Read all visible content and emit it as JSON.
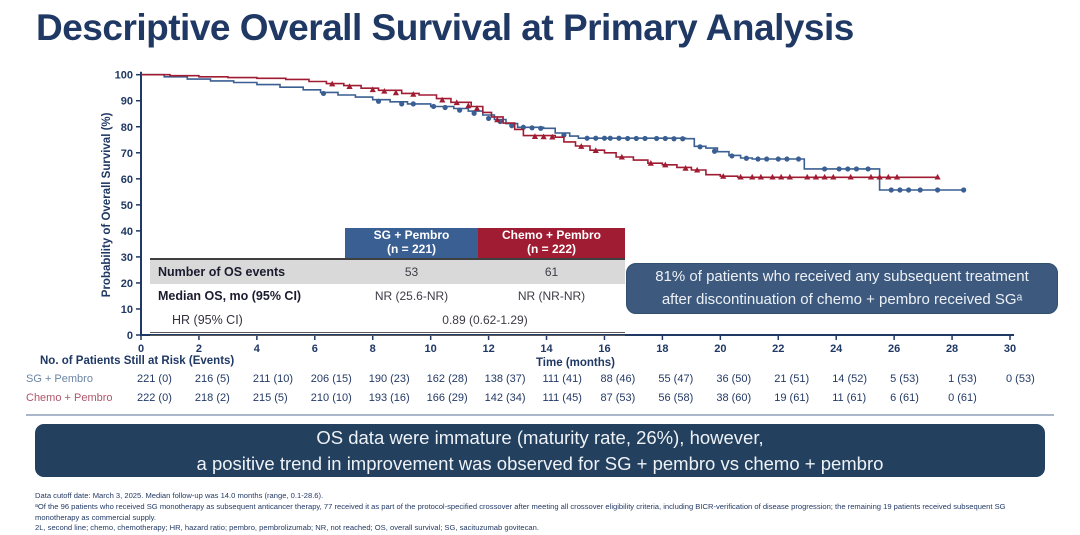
{
  "slide": {
    "title": "Descriptive Overall Survival at Primary Analysis"
  },
  "chart_data": {
    "type": "line",
    "subtype": "kaplan-meier-step",
    "title": "",
    "xlabel": "Time (months)",
    "ylabel": "Probability of Overall Survival (%)",
    "xlim": [
      0,
      30
    ],
    "ylim": [
      0,
      100
    ],
    "x_ticks": [
      0,
      2,
      4,
      6,
      8,
      10,
      12,
      14,
      16,
      18,
      20,
      22,
      24,
      26,
      28,
      30
    ],
    "y_ticks": [
      0,
      10,
      20,
      30,
      40,
      50,
      60,
      70,
      80,
      90,
      100
    ],
    "grid": false,
    "legend_position": "none",
    "series": [
      {
        "name": "SG + Pembro",
        "color": "#3a5f92",
        "marker": "circle",
        "points": [
          [
            0,
            100
          ],
          [
            0.8,
            99.2
          ],
          [
            1.6,
            98.3
          ],
          [
            2.4,
            97.6
          ],
          [
            3.2,
            97
          ],
          [
            4,
            96.2
          ],
          [
            4.8,
            95.2
          ],
          [
            5.6,
            94.2
          ],
          [
            6.2,
            93.2
          ],
          [
            6.8,
            92.2
          ],
          [
            7.4,
            91.4
          ],
          [
            8,
            90.4
          ],
          [
            8.6,
            89.6
          ],
          [
            9.2,
            88.8
          ],
          [
            10,
            87.8
          ],
          [
            10.8,
            87
          ],
          [
            11.3,
            86
          ],
          [
            11.8,
            84.5
          ],
          [
            12.2,
            82.8
          ],
          [
            12.6,
            81.2
          ],
          [
            13,
            79.8
          ],
          [
            13.9,
            79.4
          ],
          [
            14.3,
            77.6
          ],
          [
            14.8,
            76.4
          ],
          [
            15.1,
            75.6
          ],
          [
            18.8,
            75.4
          ],
          [
            19.1,
            72.5
          ],
          [
            19.5,
            71.8
          ],
          [
            19.9,
            70.4
          ],
          [
            20.3,
            69
          ],
          [
            20.7,
            68
          ],
          [
            21.1,
            67.6
          ],
          [
            22.8,
            67.6
          ],
          [
            22.9,
            63.8
          ],
          [
            25.4,
            63.8
          ],
          [
            25.5,
            55.7
          ],
          [
            28.4,
            55.7
          ]
        ],
        "censor_marks": [
          [
            6.3,
            92.8
          ],
          [
            8.2,
            89.8
          ],
          [
            9,
            88.8
          ],
          [
            9.4,
            88.8
          ],
          [
            10.1,
            87.8
          ],
          [
            10.5,
            87.4
          ],
          [
            11,
            86.4
          ],
          [
            11.5,
            85.2
          ],
          [
            12,
            83.2
          ],
          [
            12.4,
            82
          ],
          [
            12.8,
            80.4
          ],
          [
            13.2,
            79.8
          ],
          [
            13.5,
            79.6
          ],
          [
            13.8,
            79.4
          ],
          [
            14.6,
            76.8
          ],
          [
            15.4,
            75.6
          ],
          [
            15.7,
            75.6
          ],
          [
            16,
            75.6
          ],
          [
            16.2,
            75.6
          ],
          [
            16.5,
            75.6
          ],
          [
            16.8,
            75.5
          ],
          [
            17.1,
            75.5
          ],
          [
            17.4,
            75.5
          ],
          [
            17.8,
            75.5
          ],
          [
            18.1,
            75.5
          ],
          [
            18.4,
            75.4
          ],
          [
            18.7,
            75.4
          ],
          [
            19.3,
            72.3
          ],
          [
            19.8,
            70.6
          ],
          [
            20.4,
            68.8
          ],
          [
            20.9,
            67.9
          ],
          [
            21.3,
            67.6
          ],
          [
            21.6,
            67.6
          ],
          [
            22,
            67.6
          ],
          [
            22.3,
            67.6
          ],
          [
            22.7,
            67.6
          ],
          [
            23.6,
            63.8
          ],
          [
            24.1,
            63.8
          ],
          [
            24.4,
            63.8
          ],
          [
            24.7,
            63.8
          ],
          [
            25.1,
            63.8
          ],
          [
            25.9,
            55.7
          ],
          [
            26.2,
            55.7
          ],
          [
            26.5,
            55.7
          ],
          [
            26.9,
            55.7
          ],
          [
            27.5,
            55.7
          ],
          [
            28.4,
            55.7
          ]
        ]
      },
      {
        "name": "Chemo + Pembro",
        "color": "#a01c33",
        "marker": "triangle",
        "points": [
          [
            0,
            100
          ],
          [
            1,
            99.6
          ],
          [
            2,
            99.2
          ],
          [
            3,
            98.9
          ],
          [
            4,
            98.6
          ],
          [
            5,
            98.2
          ],
          [
            5.8,
            97.4
          ],
          [
            6.4,
            96.6
          ],
          [
            7,
            95.8
          ],
          [
            7.6,
            94.8
          ],
          [
            8.2,
            94
          ],
          [
            9,
            92.8
          ],
          [
            9.6,
            92.2
          ],
          [
            10.2,
            90.8
          ],
          [
            10.7,
            89.4
          ],
          [
            11.4,
            87.8
          ],
          [
            11.8,
            85.5
          ],
          [
            12.1,
            83.8
          ],
          [
            12.5,
            81.4
          ],
          [
            12.9,
            79
          ],
          [
            13.2,
            76.6
          ],
          [
            14.3,
            76
          ],
          [
            14.6,
            74.2
          ],
          [
            15,
            72.6
          ],
          [
            15.5,
            71
          ],
          [
            16,
            70
          ],
          [
            16.4,
            68.4
          ],
          [
            17,
            67.2
          ],
          [
            17.5,
            66
          ],
          [
            18,
            65.4
          ],
          [
            18.5,
            64.4
          ],
          [
            19,
            63.4
          ],
          [
            19.5,
            61.6
          ],
          [
            20,
            61
          ],
          [
            20.6,
            60.6
          ],
          [
            27.5,
            60.6
          ]
        ],
        "censor_marks": [
          [
            6.6,
            96.4
          ],
          [
            7.2,
            95.4
          ],
          [
            8,
            94.2
          ],
          [
            8.4,
            93.6
          ],
          [
            8.8,
            93
          ],
          [
            9.4,
            92.4
          ],
          [
            10.4,
            90.2
          ],
          [
            10.9,
            89.2
          ],
          [
            11.3,
            88
          ],
          [
            11.6,
            87
          ],
          [
            12.3,
            82.6
          ],
          [
            13.6,
            76.2
          ],
          [
            13.9,
            76.1
          ],
          [
            14.2,
            76
          ],
          [
            15.2,
            72.4
          ],
          [
            15.7,
            70.8
          ],
          [
            16.6,
            68.3
          ],
          [
            17.6,
            65.9
          ],
          [
            18.1,
            65.3
          ],
          [
            18.8,
            64
          ],
          [
            19.2,
            63.3
          ],
          [
            20.1,
            60.9
          ],
          [
            20.7,
            60.6
          ],
          [
            21.1,
            60.6
          ],
          [
            21.4,
            60.6
          ],
          [
            21.8,
            60.6
          ],
          [
            22.1,
            60.6
          ],
          [
            22.4,
            60.6
          ],
          [
            23,
            60.6
          ],
          [
            23.3,
            60.6
          ],
          [
            23.6,
            60.6
          ],
          [
            23.9,
            60.6
          ],
          [
            24.5,
            60.6
          ],
          [
            25.2,
            60.6
          ],
          [
            25.5,
            60.6
          ],
          [
            25.8,
            60.6
          ],
          [
            26.1,
            60.6
          ],
          [
            27.5,
            60.6
          ]
        ]
      }
    ]
  },
  "stats_table": {
    "col_headers": [
      {
        "line1": "SG + Pembro",
        "line2": "(n = 221)",
        "color": "#3a5f92"
      },
      {
        "line1": "Chemo + Pembro",
        "line2": "(n = 222)",
        "color": "#a01c33"
      }
    ],
    "rows": [
      {
        "label": "Number of OS events",
        "values": [
          "53",
          "61"
        ]
      },
      {
        "label": "Median OS, mo (95% CI)",
        "values": [
          "NR (25.6-NR)",
          "NR (NR-NR)"
        ]
      },
      {
        "label": "HR (95% CI)",
        "span_value": "0.89 (0.62-1.29)"
      }
    ]
  },
  "callout": {
    "line1": "81% of patients who received any subsequent treatment",
    "line2": "after discontinuation of chemo + pembro received SGᵃ"
  },
  "at_risk": {
    "title": "No. of Patients Still at Risk (Events)",
    "time_points": [
      0,
      2,
      4,
      6,
      8,
      10,
      12,
      14,
      16,
      18,
      20,
      22,
      24,
      26,
      28,
      30
    ],
    "rows": [
      {
        "label": "SG + Pembro",
        "label_color": "#6c84a4",
        "values": [
          "221 (0)",
          "216 (5)",
          "211 (10)",
          "206 (15)",
          "190 (23)",
          "162 (28)",
          "138 (37)",
          "111 (41)",
          "88 (46)",
          "55 (47)",
          "36 (50)",
          "21 (51)",
          "14 (52)",
          "5 (53)",
          "1 (53)",
          "0 (53)"
        ]
      },
      {
        "label": "Chemo + Pembro",
        "label_color": "#b0556a",
        "values": [
          "222 (0)",
          "218 (2)",
          "215 (5)",
          "210 (10)",
          "193 (16)",
          "166 (29)",
          "142 (34)",
          "111 (45)",
          "87 (53)",
          "56 (58)",
          "38 (60)",
          "19 (61)",
          "11 (61)",
          "6 (61)",
          "0 (61)",
          ""
        ]
      }
    ]
  },
  "banner": {
    "line1": "OS data were immature (maturity rate, 26%), however,",
    "line2": "a positive trend in improvement was observed for SG + pembro vs chemo + pembro"
  },
  "footnotes": [
    "Data cutoff date: March 3, 2025. Median follow-up was 14.0 months (range, 0.1-28.6).",
    "ᵃOf the 96 patients who received SG monotherapy as subsequent anticancer therapy, 77 received it as part of the protocol-specified crossover after meeting all crossover eligibility criteria, including BICR-verification of disease progression; the remaining 19 patients received subsequent SG monotherapy as commercial supply.",
    "2L, second line; chemo, chemotherapy; HR, hazard ratio; pembro, pembrolizumab; NR, not reached; OS, overall survival; SG, sacituzumab govitecan."
  ]
}
